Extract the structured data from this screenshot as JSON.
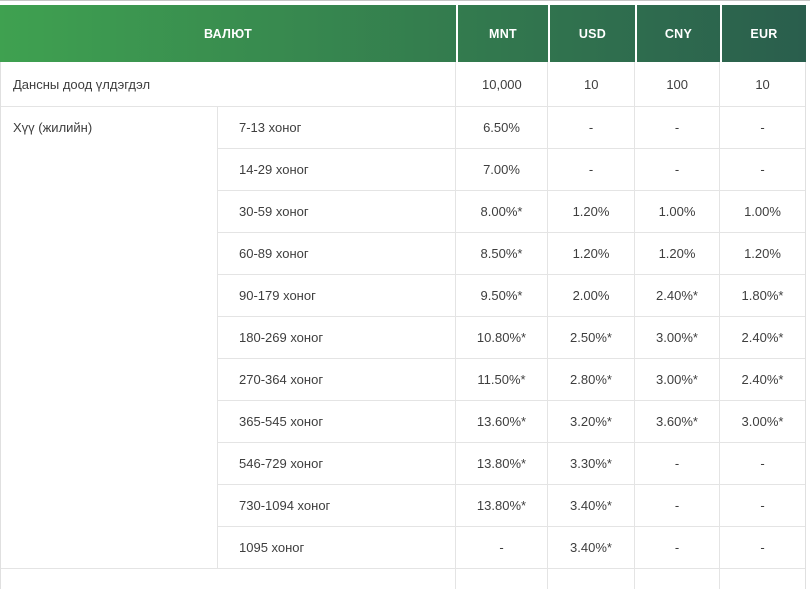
{
  "table": {
    "header": {
      "currency_label": "ВАЛЮТ",
      "columns": [
        "MNT",
        "USD",
        "CNY",
        "EUR"
      ]
    },
    "min_balance": {
      "label": "Дансны доод үлдэгдэл",
      "values": [
        "10,000",
        "10",
        "100",
        "10"
      ]
    },
    "interest": {
      "label": "Хүү (жилийн)",
      "rows": [
        {
          "period": "7-13 хоног",
          "values": [
            "6.50%",
            "-",
            "-",
            "-"
          ]
        },
        {
          "period": "14-29 хоног",
          "values": [
            "7.00%",
            "-",
            "-",
            "-"
          ]
        },
        {
          "period": "30-59 хоног",
          "values": [
            "8.00%*",
            "1.20%",
            "1.00%",
            "1.00%"
          ]
        },
        {
          "period": "60-89 хоног",
          "values": [
            "8.50%*",
            "1.20%",
            "1.20%",
            "1.20%"
          ]
        },
        {
          "period": "90-179 хоног",
          "values": [
            "9.50%*",
            "2.00%",
            "2.40%*",
            "1.80%*"
          ]
        },
        {
          "period": "180-269 хоног",
          "values": [
            "10.80%*",
            "2.50%*",
            "3.00%*",
            "2.40%*"
          ]
        },
        {
          "period": "270-364 хоног",
          "values": [
            "11.50%*",
            "2.80%*",
            "3.00%*",
            "2.40%*"
          ]
        },
        {
          "period": "365-545 хоног",
          "values": [
            "13.60%*",
            "3.20%*",
            "3.60%*",
            "3.00%*"
          ]
        },
        {
          "period": "546-729 хоног",
          "values": [
            "13.80%*",
            "3.30%*",
            "-",
            "-"
          ]
        },
        {
          "period": "730-1094 хоног",
          "values": [
            "13.80%*",
            "3.40%*",
            "-",
            "-"
          ]
        },
        {
          "period": "1095 хоног",
          "values": [
            "-",
            "3.40%*",
            "-",
            "-"
          ]
        }
      ]
    },
    "colors": {
      "header_gradient_start": "#3fa150",
      "header_gradient_end": "#2a5e4d",
      "header_text": "#ffffff",
      "body_text": "#3e3e3e",
      "border": "#e4e4e4"
    }
  },
  "chart_data": {
    "type": "table",
    "title": "ВАЛЮТ",
    "columns": [
      "",
      "",
      "MNT",
      "USD",
      "CNY",
      "EUR"
    ],
    "rows": [
      [
        "Дансны доод үлдэгдэл",
        "",
        "10,000",
        "10",
        "100",
        "10"
      ],
      [
        "Хүү (жилийн)",
        "7-13 хоног",
        "6.50%",
        "-",
        "-",
        "-"
      ],
      [
        "",
        "14-29 хоног",
        "7.00%",
        "-",
        "-",
        "-"
      ],
      [
        "",
        "30-59 хоног",
        "8.00%*",
        "1.20%",
        "1.00%",
        "1.00%"
      ],
      [
        "",
        "60-89 хоног",
        "8.50%*",
        "1.20%",
        "1.20%",
        "1.20%"
      ],
      [
        "",
        "90-179 хоног",
        "9.50%*",
        "2.00%",
        "2.40%*",
        "1.80%*"
      ],
      [
        "",
        "180-269 хоног",
        "10.80%*",
        "2.50%*",
        "3.00%*",
        "2.40%*"
      ],
      [
        "",
        "270-364 хоног",
        "11.50%*",
        "2.80%*",
        "3.00%*",
        "2.40%*"
      ],
      [
        "",
        "365-545 хоног",
        "13.60%*",
        "3.20%*",
        "3.60%*",
        "3.00%*"
      ],
      [
        "",
        "546-729 хоног",
        "13.80%*",
        "3.30%*",
        "-",
        "-"
      ],
      [
        "",
        "730-1094 хоног",
        "13.80%*",
        "3.40%*",
        "-",
        "-"
      ],
      [
        "",
        "1095 хоног",
        "-",
        "3.40%*",
        "-",
        "-"
      ]
    ]
  }
}
